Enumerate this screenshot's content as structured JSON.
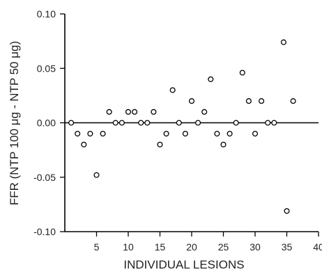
{
  "chart_data": {
    "type": "scatter",
    "title": "",
    "xlabel": "INDIVIDUAL LESIONS",
    "ylabel": "FFR (NTP 100 μg - NTP 50 μg)",
    "xlim": [
      0,
      40
    ],
    "ylim": [
      -0.1,
      0.1
    ],
    "x_ticks": [
      5,
      10,
      15,
      20,
      25,
      30,
      35,
      40
    ],
    "x_tick_labels": [
      "5",
      "10",
      "15",
      "20",
      "25",
      "30",
      "35",
      "40"
    ],
    "y_ticks": [
      -0.1,
      -0.05,
      0.0,
      0.05,
      0.1
    ],
    "y_tick_labels": [
      "-0.10",
      "-0.05",
      "0.00",
      "0.05",
      "0.10"
    ],
    "reference_line_y": 0,
    "grid": false,
    "points": [
      {
        "x": 1,
        "y": 0.0
      },
      {
        "x": 2,
        "y": -0.01
      },
      {
        "x": 3,
        "y": -0.02
      },
      {
        "x": 4,
        "y": -0.01
      },
      {
        "x": 5,
        "y": -0.048
      },
      {
        "x": 6,
        "y": -0.01
      },
      {
        "x": 7,
        "y": 0.01
      },
      {
        "x": 8,
        "y": 0.0
      },
      {
        "x": 9,
        "y": 0.0
      },
      {
        "x": 10,
        "y": 0.01
      },
      {
        "x": 11,
        "y": 0.01
      },
      {
        "x": 12,
        "y": 0.0
      },
      {
        "x": 13,
        "y": 0.0
      },
      {
        "x": 14,
        "y": 0.01
      },
      {
        "x": 15,
        "y": -0.02
      },
      {
        "x": 16,
        "y": -0.01
      },
      {
        "x": 17,
        "y": 0.03
      },
      {
        "x": 18,
        "y": 0.0
      },
      {
        "x": 19,
        "y": -0.01
      },
      {
        "x": 20,
        "y": 0.02
      },
      {
        "x": 21,
        "y": 0.0
      },
      {
        "x": 22,
        "y": 0.01
      },
      {
        "x": 23,
        "y": 0.04
      },
      {
        "x": 24,
        "y": -0.01
      },
      {
        "x": 25,
        "y": -0.02
      },
      {
        "x": 26,
        "y": -0.01
      },
      {
        "x": 27,
        "y": 0.0
      },
      {
        "x": 28,
        "y": 0.046
      },
      {
        "x": 29,
        "y": 0.02
      },
      {
        "x": 30,
        "y": -0.01
      },
      {
        "x": 31,
        "y": 0.02
      },
      {
        "x": 32,
        "y": 0.0
      },
      {
        "x": 33,
        "y": 0.0
      },
      {
        "x": 34.5,
        "y": 0.074
      },
      {
        "x": 35,
        "y": -0.081
      },
      {
        "x": 36,
        "y": 0.02
      }
    ]
  }
}
